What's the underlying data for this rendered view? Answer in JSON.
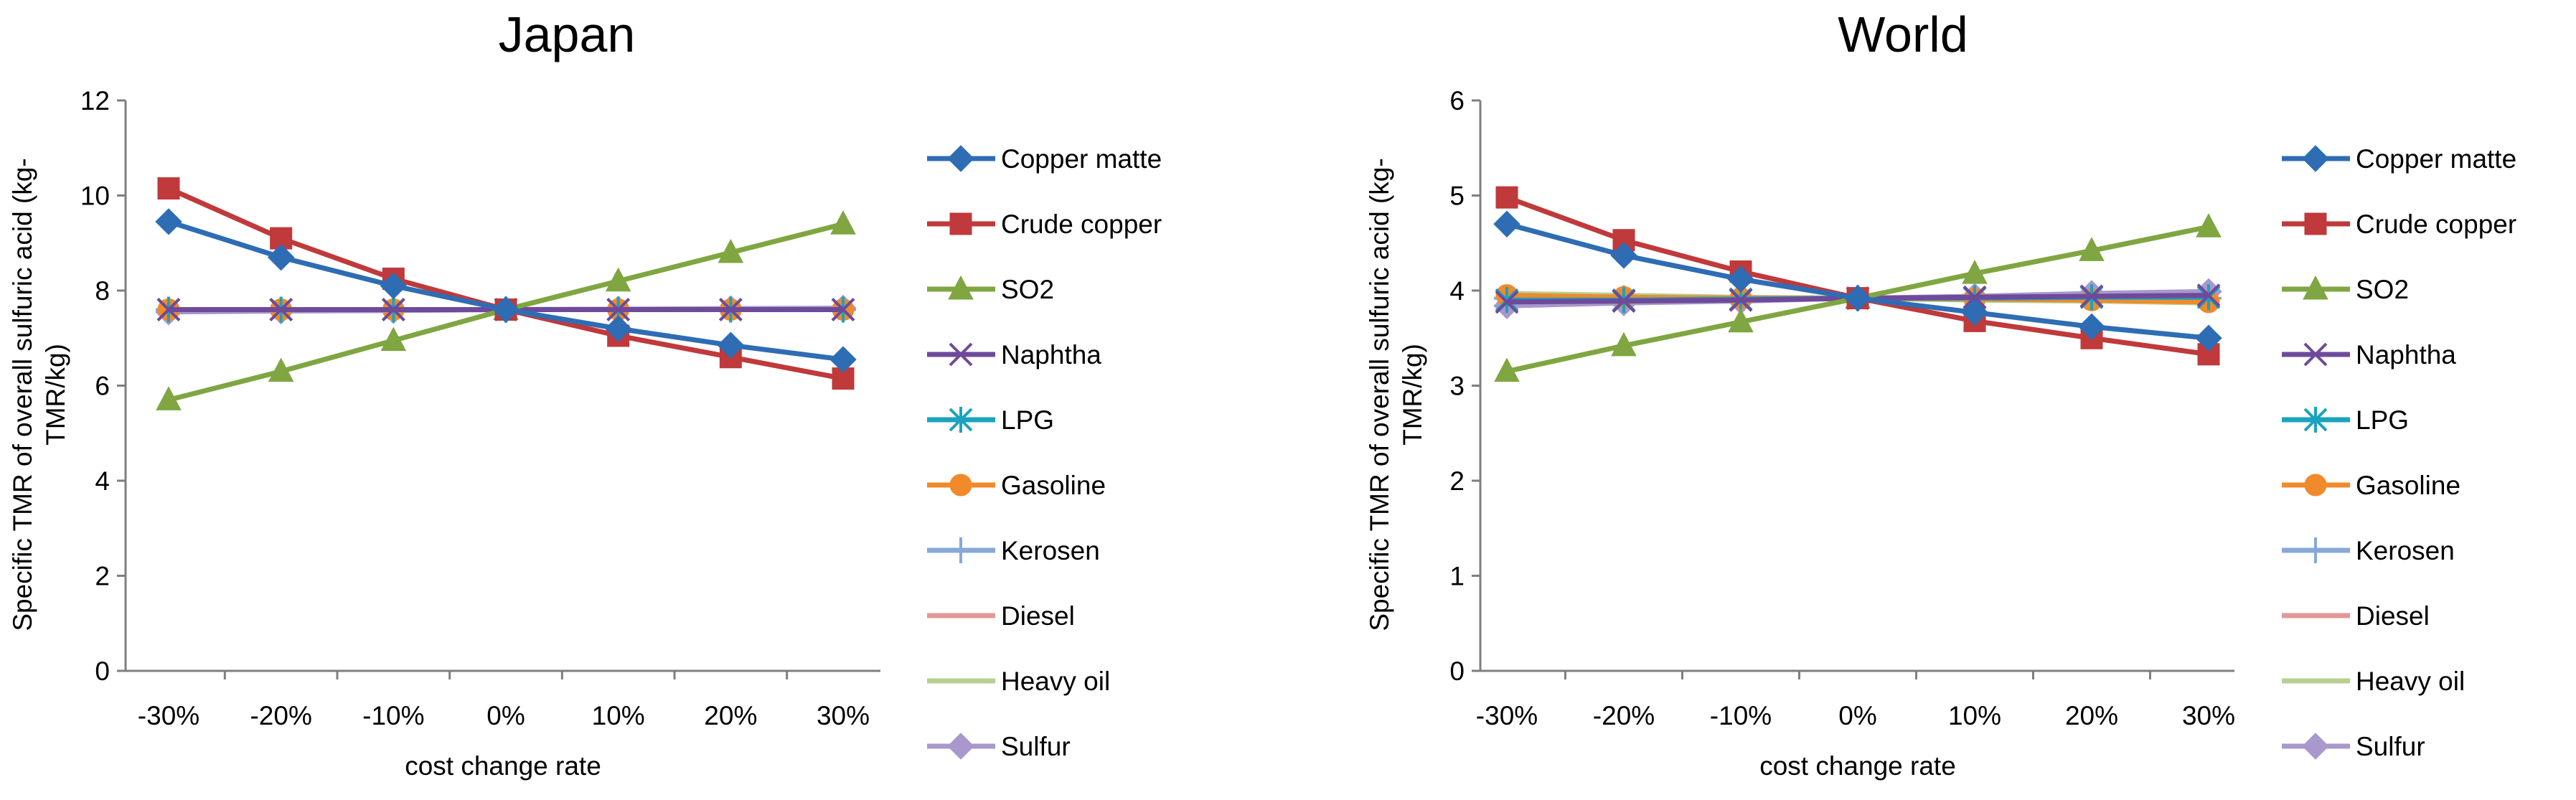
{
  "colors": {
    "copper_matte": "#2E6DB4",
    "crude_copper": "#C0393B",
    "so2": "#7FA641",
    "naphtha": "#6E4A9B",
    "lpg": "#1AA3BD",
    "gasoline": "#F08A2B",
    "kerosen": "#87A8D9",
    "diesel": "#E39896",
    "heavy_oil": "#B6D08F",
    "sulfur": "#A898CC"
  },
  "chart_data": [
    {
      "type": "line",
      "title": "Japan",
      "xlabel": "cost change rate",
      "ylabel_lines": [
        "Specific TMR of overall sulfuric acid (kg-",
        "TMR/kg)"
      ],
      "categories": [
        "-30%",
        "-20%",
        "-10%",
        "0%",
        "10%",
        "20%",
        "30%"
      ],
      "ylim": [
        0,
        12
      ],
      "yticks": [
        0,
        2,
        4,
        6,
        8,
        10,
        12
      ],
      "ytick_labels": [
        "0",
        "2",
        "4",
        "6",
        "8",
        "10",
        "12"
      ],
      "legend_position": "right",
      "series": [
        {
          "name": "Copper matte",
          "values": [
            9.45,
            8.7,
            8.1,
            7.6,
            7.2,
            6.85,
            6.55
          ]
        },
        {
          "name": "Crude copper",
          "values": [
            10.15,
            9.1,
            8.25,
            7.6,
            7.05,
            6.6,
            6.15
          ]
        },
        {
          "name": "SO2",
          "values": [
            5.7,
            6.3,
            6.95,
            7.6,
            8.2,
            8.8,
            9.4
          ]
        },
        {
          "name": "Naphtha",
          "values": [
            7.6,
            7.6,
            7.6,
            7.6,
            7.6,
            7.6,
            7.6
          ]
        },
        {
          "name": "LPG",
          "values": [
            7.6,
            7.6,
            7.6,
            7.6,
            7.6,
            7.6,
            7.6
          ]
        },
        {
          "name": "Gasoline",
          "values": [
            7.6,
            7.6,
            7.6,
            7.6,
            7.6,
            7.6,
            7.6
          ]
        },
        {
          "name": "Kerosen",
          "values": [
            7.6,
            7.6,
            7.6,
            7.6,
            7.6,
            7.6,
            7.6
          ]
        },
        {
          "name": "Diesel",
          "values": [
            7.6,
            7.6,
            7.6,
            7.6,
            7.6,
            7.6,
            7.6
          ]
        },
        {
          "name": "Heavy oil",
          "values": [
            7.6,
            7.6,
            7.6,
            7.6,
            7.6,
            7.6,
            7.6
          ]
        },
        {
          "name": "Sulfur",
          "values": [
            7.55,
            7.57,
            7.58,
            7.6,
            7.61,
            7.62,
            7.63
          ]
        }
      ]
    },
    {
      "type": "line",
      "title": "World",
      "xlabel": "cost change rate",
      "ylabel_lines": [
        "Specific TMR of overall sulfuric acid (kg-",
        "TMR/kg)"
      ],
      "categories": [
        "-30%",
        "-20%",
        "-10%",
        "0%",
        "10%",
        "20%",
        "30%"
      ],
      "ylim": [
        0,
        6
      ],
      "yticks": [
        0,
        1,
        2,
        3,
        4,
        5,
        6
      ],
      "ytick_labels": [
        "0",
        "1",
        "2",
        "3",
        "4",
        "5",
        "6"
      ],
      "legend_position": "right",
      "series": [
        {
          "name": "Copper matte",
          "values": [
            4.7,
            4.37,
            4.12,
            3.92,
            3.77,
            3.62,
            3.5
          ]
        },
        {
          "name": "Crude copper",
          "values": [
            4.98,
            4.53,
            4.2,
            3.92,
            3.68,
            3.5,
            3.33
          ]
        },
        {
          "name": "SO2",
          "values": [
            3.15,
            3.42,
            3.67,
            3.92,
            4.18,
            4.42,
            4.67
          ]
        },
        {
          "name": "Naphtha",
          "values": [
            3.88,
            3.89,
            3.9,
            3.92,
            3.93,
            3.94,
            3.95
          ]
        },
        {
          "name": "LPG",
          "values": [
            3.9,
            3.9,
            3.91,
            3.92,
            3.92,
            3.93,
            3.93
          ]
        },
        {
          "name": "Gasoline",
          "values": [
            3.95,
            3.93,
            3.92,
            3.92,
            3.91,
            3.9,
            3.88
          ]
        },
        {
          "name": "Kerosen",
          "values": [
            3.92,
            3.92,
            3.92,
            3.92,
            3.92,
            3.92,
            3.92
          ]
        },
        {
          "name": "Diesel",
          "values": [
            3.93,
            3.93,
            3.92,
            3.92,
            3.91,
            3.91,
            3.9
          ]
        },
        {
          "name": "Heavy oil",
          "values": [
            3.97,
            3.95,
            3.93,
            3.92,
            3.9,
            3.89,
            3.87
          ]
        },
        {
          "name": "Sulfur",
          "values": [
            3.84,
            3.87,
            3.89,
            3.92,
            3.94,
            3.97,
            3.99
          ]
        }
      ]
    }
  ]
}
